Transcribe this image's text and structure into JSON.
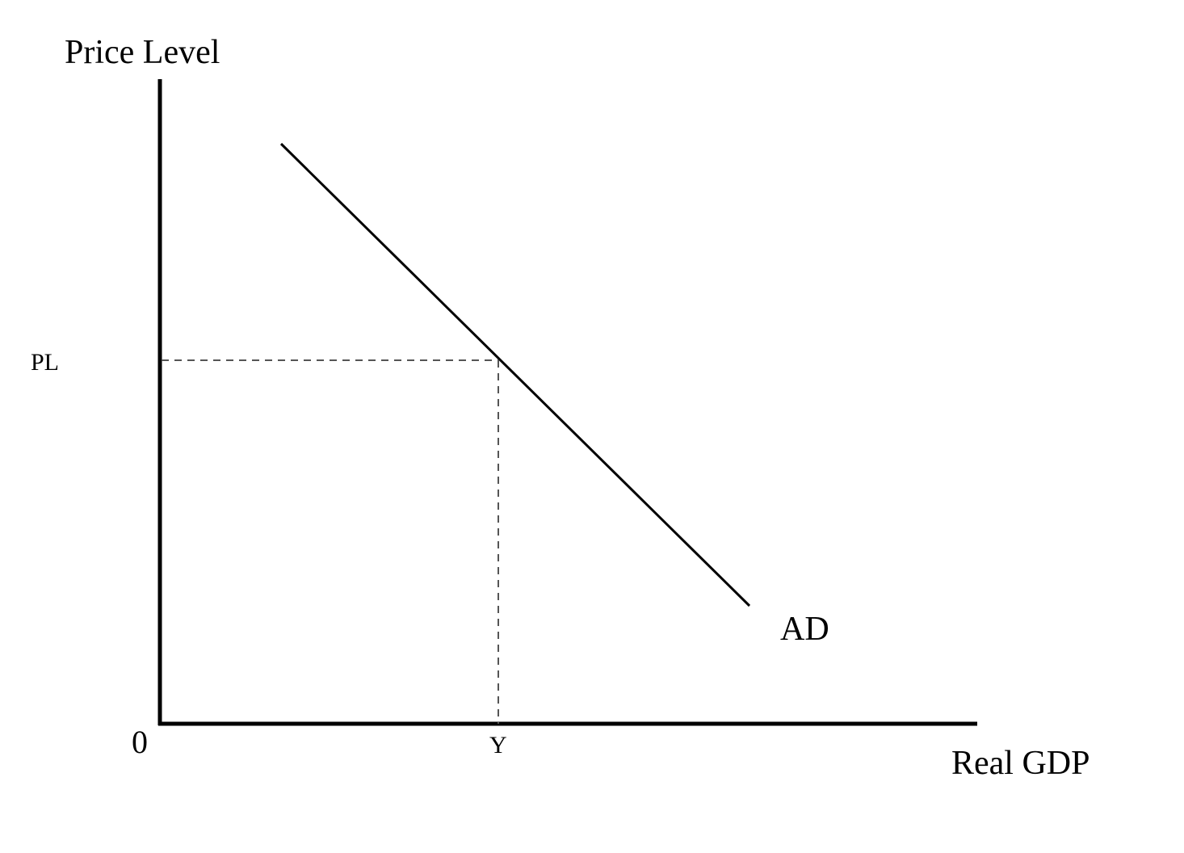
{
  "diagram": {
    "y_axis_label": "Price Level",
    "x_axis_label": "Real GDP",
    "origin_label": "0",
    "y_marker_label": "PL",
    "x_marker_label": "Y",
    "curve_label": "AD",
    "colors": {
      "background": "#ffffff",
      "line": "#000000",
      "guide": "#555555"
    }
  }
}
